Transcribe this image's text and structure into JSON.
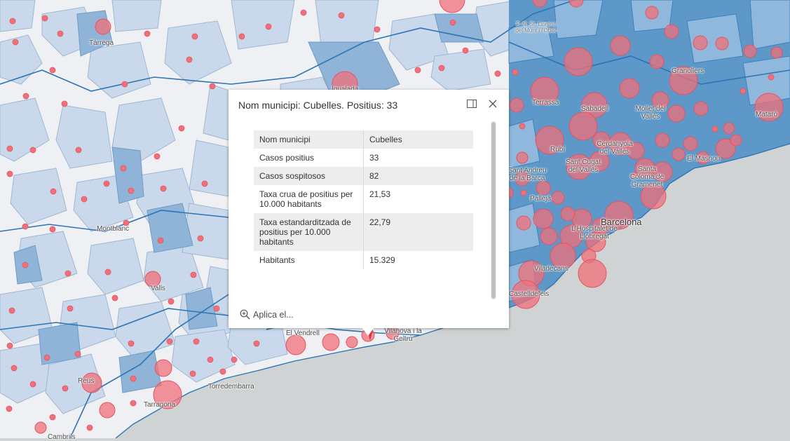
{
  "map": {
    "colors": {
      "sea": "#cfd3d4",
      "land": "#efefef",
      "boundary": "#2e74b5",
      "circle": "#f0707a"
    },
    "place_labels": [
      "Tàrrega",
      "Igualada",
      "P. N. St. Llorenç del Munt i l'Obac",
      "Granollers",
      "Terrassa",
      "Sabadell",
      "Mollet del Vallès",
      "Mataró",
      "Rubí",
      "Cerdanyola del Vallès",
      "Sant Cugat del Vallès",
      "El Masnou",
      "Sant Andreu de la Barca",
      "Santa Coloma de Gramenet",
      "Pallejà",
      "Barcelona",
      "Montblanc",
      "L'Hospitalet de Llobregat",
      "Viladecans",
      "Valls",
      "Castelldefels",
      "El Vendrell",
      "Vilanova i la Geltrú",
      "Reus",
      "Torredembarra",
      "Tarragona",
      "Cambrils"
    ]
  },
  "popup": {
    "title": "Nom municipi: Cubelles. Positius: 33",
    "dock_icon": "dock-icon",
    "close_icon": "close-icon",
    "rows": [
      {
        "key": "Nom municipi",
        "value": "Cubelles"
      },
      {
        "key": "Casos positius",
        "value": "33"
      },
      {
        "key": "Casos sospitosos",
        "value": "82"
      },
      {
        "key": "Taxa crua de positius per 10.000 habitants",
        "value": "21,53"
      },
      {
        "key": "Taxa estandarditzada de positius per 10.000 habitants",
        "value": "22,79"
      },
      {
        "key": "Habitants",
        "value": "15.329"
      }
    ],
    "action_label": "Aplica el...",
    "action_icon": "zoom-in-icon"
  }
}
